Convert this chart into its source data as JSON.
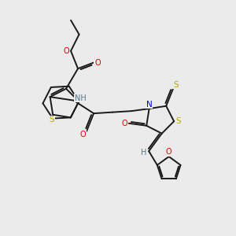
{
  "bg": "#ebebeb",
  "lc": "#1a1a1a",
  "lw": 1.4,
  "fs": 7.0,
  "colors": {
    "O": "#dd0000",
    "S": "#bbaa00",
    "N": "#0000cc",
    "H": "#557788",
    "C": "#1a1a1a"
  }
}
